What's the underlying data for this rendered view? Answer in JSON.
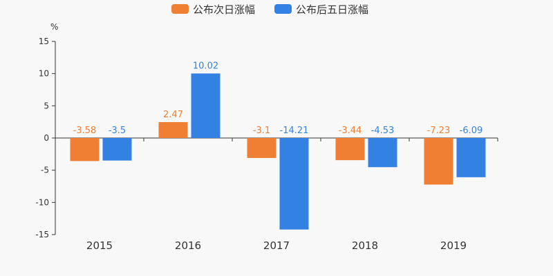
{
  "chart_data": {
    "type": "bar",
    "ylabel": "%",
    "ylim": [
      -15,
      15
    ],
    "yticks": [
      15,
      10,
      5,
      0,
      -5,
      -10,
      -15
    ],
    "categories": [
      "2015",
      "2016",
      "2017",
      "2018",
      "2019"
    ],
    "series": [
      {
        "name": "公布次日涨幅",
        "color": "#ef7f33",
        "values": [
          -3.58,
          2.47,
          -3.1,
          -3.44,
          -7.23
        ]
      },
      {
        "name": "公布后五日涨幅",
        "color": "#3382e3",
        "values": [
          -3.5,
          10.02,
          -14.21,
          -4.53,
          -6.09
        ]
      }
    ],
    "legend_position": "top-center",
    "grid": false
  }
}
